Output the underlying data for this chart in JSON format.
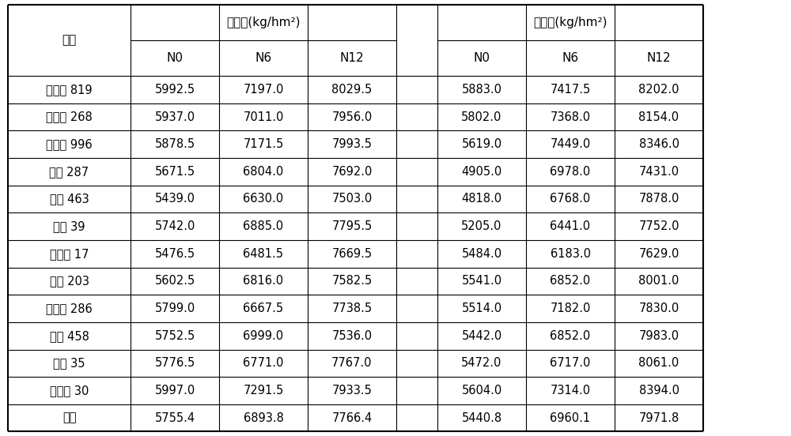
{
  "changsha_header": "长沙县(kg/hm²)",
  "hengyang_header": "衡阳县(kg/hm²)",
  "pz_header": "品种",
  "subheaders": [
    "N0",
    "N6",
    "N12"
  ],
  "varieties": [
    "株两优 819",
    "陵两优 268",
    "陆两优 996",
    "两优 287",
    "金优 463",
    "中早 39",
    "中嘉早 17",
    "淦鑫 203",
    "五丰优 286",
    "金优 458",
    "中早 35",
    "株两优 30",
    "平均"
  ],
  "changsha_data": [
    [
      5992.5,
      7197.0,
      8029.5
    ],
    [
      5937.0,
      7011.0,
      7956.0
    ],
    [
      5878.5,
      7171.5,
      7993.5
    ],
    [
      5671.5,
      6804.0,
      7692.0
    ],
    [
      5439.0,
      6630.0,
      7503.0
    ],
    [
      5742.0,
      6885.0,
      7795.5
    ],
    [
      5476.5,
      6481.5,
      7669.5
    ],
    [
      5602.5,
      6816.0,
      7582.5
    ],
    [
      5799.0,
      6667.5,
      7738.5
    ],
    [
      5752.5,
      6999.0,
      7536.0
    ],
    [
      5776.5,
      6771.0,
      7767.0
    ],
    [
      5997.0,
      7291.5,
      7933.5
    ],
    [
      5755.4,
      6893.8,
      7766.4
    ]
  ],
  "hengyang_data": [
    [
      5883.0,
      7417.5,
      8202.0
    ],
    [
      5802.0,
      7368.0,
      8154.0
    ],
    [
      5619.0,
      7449.0,
      8346.0
    ],
    [
      4905.0,
      6978.0,
      7431.0
    ],
    [
      4818.0,
      6768.0,
      7878.0
    ],
    [
      5205.0,
      6441.0,
      7752.0
    ],
    [
      5484.0,
      6183.0,
      7629.0
    ],
    [
      5541.0,
      6852.0,
      8001.0
    ],
    [
      5514.0,
      7182.0,
      7830.0
    ],
    [
      5442.0,
      6852.0,
      7983.0
    ],
    [
      5472.0,
      6717.0,
      8061.0
    ],
    [
      5604.0,
      7314.0,
      8394.0
    ],
    [
      5440.8,
      6960.1,
      7971.8
    ]
  ],
  "bg_color": "#ffffff",
  "line_color": "#000000",
  "header_fontsize": 11,
  "cell_fontsize": 10.5,
  "figsize": [
    10.0,
    5.52
  ],
  "dpi": 100
}
